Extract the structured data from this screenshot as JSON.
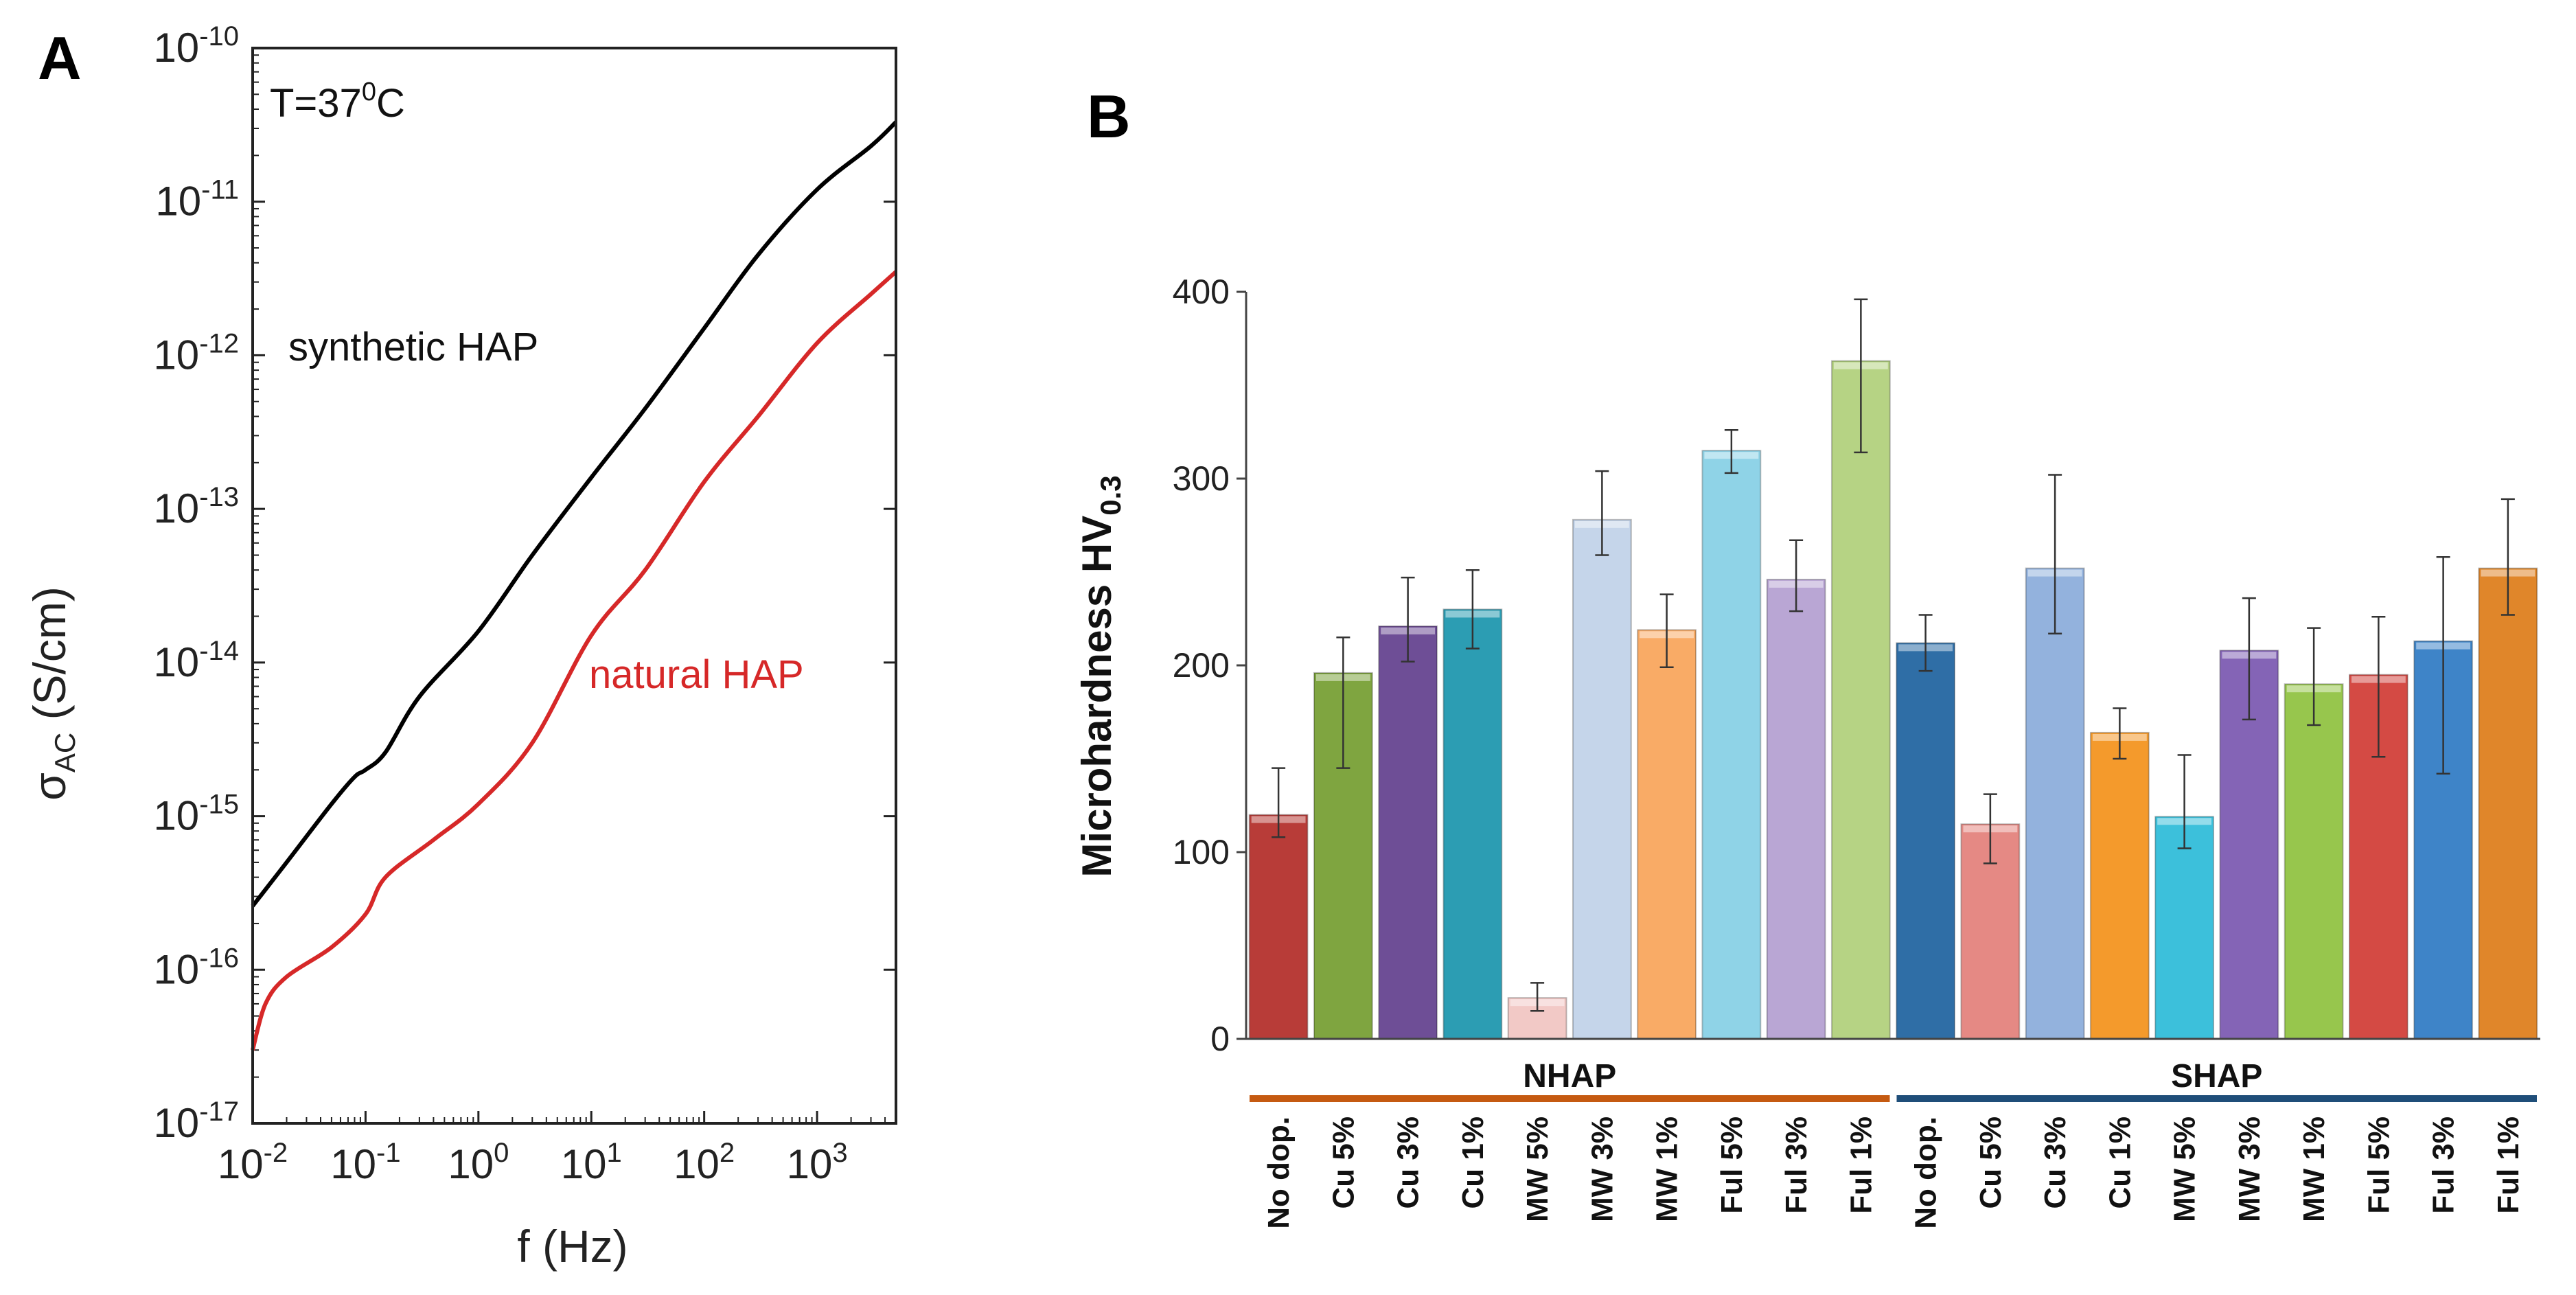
{
  "chart_data": [
    {
      "panel": "A",
      "type": "line",
      "xscale": "log",
      "yscale": "log",
      "xlabel": "f (Hz)",
      "ylabel_main": "σ",
      "ylabel_sub": "AC",
      "ylabel_unit": " (S/cm)",
      "xlim": [
        0.01,
        5000
      ],
      "ylim": [
        1e-17,
        1e-10
      ],
      "x_ticks": [
        {
          "base": "10",
          "exp": "-2",
          "value": 0.01
        },
        {
          "base": "10",
          "exp": "-1",
          "value": 0.1
        },
        {
          "base": "10",
          "exp": "0",
          "value": 1
        },
        {
          "base": "10",
          "exp": "1",
          "value": 10
        },
        {
          "base": "10",
          "exp": "2",
          "value": 100
        },
        {
          "base": "10",
          "exp": "3",
          "value": 1000
        }
      ],
      "y_ticks": [
        {
          "base": "10",
          "exp": "-10",
          "value": 1e-10
        },
        {
          "base": "10",
          "exp": "-11",
          "value": 1e-11
        },
        {
          "base": "10",
          "exp": "-12",
          "value": 1e-12
        },
        {
          "base": "10",
          "exp": "-13",
          "value": 1e-13
        },
        {
          "base": "10",
          "exp": "-14",
          "value": 1e-14
        },
        {
          "base": "10",
          "exp": "-15",
          "value": 1e-15
        },
        {
          "base": "10",
          "exp": "-16",
          "value": 1e-16
        },
        {
          "base": "10",
          "exp": "-17",
          "value": 1e-17
        }
      ],
      "annotation": {
        "prefix": "T=37",
        "sup": "0",
        "suffix": "C"
      },
      "series": [
        {
          "name": "synthetic HAP",
          "color": "#000000",
          "x": [
            0.01,
            0.02,
            0.05,
            0.08,
            0.1,
            0.15,
            0.3,
            1,
            3,
            10,
            30,
            100,
            300,
            1000,
            3000,
            5000
          ],
          "y": [
            2.6e-16,
            5e-16,
            1.2e-15,
            1.8e-15,
            2e-15,
            2.6e-15,
            6e-15,
            1.6e-14,
            5e-14,
            1.6e-13,
            4.5e-13,
            1.5e-12,
            4.5e-12,
            1.2e-11,
            2.3e-11,
            3.3e-11
          ]
        },
        {
          "name": "natural HAP",
          "color": "#d62828",
          "x": [
            0.01,
            0.013,
            0.02,
            0.05,
            0.1,
            0.15,
            0.4,
            1,
            3,
            10,
            30,
            100,
            300,
            1000,
            3000,
            5000
          ],
          "y": [
            3e-17,
            6e-17,
            9e-17,
            1.4e-16,
            2.3e-16,
            4e-16,
            7e-16,
            1.2e-15,
            3e-15,
            1.5e-14,
            4e-14,
            1.5e-13,
            4e-13,
            1.2e-12,
            2.5e-12,
            3.5e-12
          ]
        }
      ]
    },
    {
      "panel": "B",
      "type": "bar",
      "ylabel": "Microhardness HV",
      "ylabel_sub": "0.3",
      "ylim": [
        0,
        400
      ],
      "y_ticks": [
        0,
        100,
        200,
        300,
        400
      ],
      "categories": [
        "No dop.",
        "Cu 5%",
        "Cu 3%",
        "Cu 1%",
        "MW 5%",
        "MW 3%",
        "MW 1%",
        "Ful 5%",
        "Ful 3%",
        "Ful 1%",
        "No dop.",
        "Cu 5%",
        "Cu 3%",
        "Cu 1%",
        "MW 5%",
        "MW 3%",
        "MW 1%",
        "Ful 5%",
        "Ful 3%",
        "Ful 1%"
      ],
      "values": [
        120,
        196,
        221,
        230,
        22,
        278,
        219,
        315,
        246,
        363,
        212,
        115,
        252,
        164,
        119,
        208,
        190,
        195,
        213,
        252
      ],
      "error_low": [
        108,
        145,
        202,
        209,
        15,
        259,
        199,
        303,
        229,
        314,
        197,
        94,
        217,
        150,
        102,
        171,
        168,
        151,
        142,
        227
      ],
      "error_high": [
        145,
        215,
        247,
        251,
        30,
        304,
        238,
        326,
        267,
        396,
        227,
        131,
        302,
        177,
        152,
        236,
        220,
        226,
        258,
        289
      ],
      "colors": [
        "#b83c38",
        "#7fa540",
        "#6e4e96",
        "#2c9db3",
        "#f2c9c6",
        "#c5d5ea",
        "#f9ab66",
        "#8fd3e7",
        "#b9a6d4",
        "#b6d384",
        "#2f6ea6",
        "#e58984",
        "#93b2dd",
        "#f49a2c",
        "#3cc0db",
        "#8464b6",
        "#97c64d",
        "#d44a44",
        "#3e84c8",
        "#e0862a"
      ],
      "groups": [
        {
          "name": "NHAP",
          "color": "#c55a11",
          "start": 0,
          "end": 9
        },
        {
          "name": "SHAP",
          "color": "#1f4e79",
          "start": 10,
          "end": 19
        }
      ]
    }
  ],
  "panel_labels": {
    "a": "A",
    "b": "B"
  }
}
